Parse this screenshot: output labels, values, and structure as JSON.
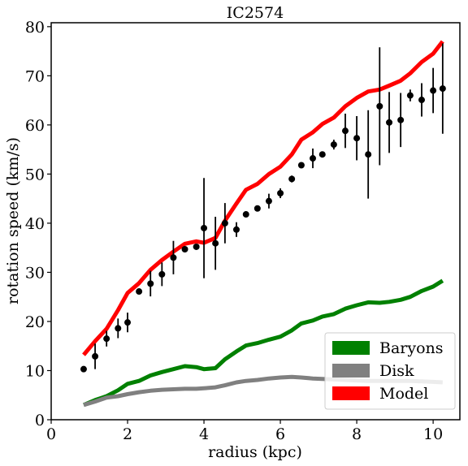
{
  "chart_data": {
    "type": "line",
    "title": "IC2574",
    "xlabel": "radius (kpc)",
    "ylabel": "rotation speed (km/s)",
    "xlim": [
      0,
      10.7
    ],
    "ylim": [
      0,
      80.8
    ],
    "xticks": [
      0,
      2,
      4,
      6,
      8,
      10
    ],
    "yticks": [
      0,
      10,
      20,
      30,
      40,
      50,
      60,
      70,
      80
    ],
    "grid": false,
    "legend_position": "bottom-right",
    "series": [
      {
        "name": "Baryons",
        "color": "#008000",
        "x": [
          0.85,
          1.15,
          1.45,
          1.75,
          2.0,
          2.3,
          2.6,
          2.9,
          3.2,
          3.5,
          3.8,
          4.0,
          4.3,
          4.55,
          4.85,
          5.1,
          5.4,
          5.7,
          6.0,
          6.3,
          6.55,
          6.85,
          7.1,
          7.4,
          7.7,
          8.0,
          8.3,
          8.6,
          8.85,
          9.15,
          9.4,
          9.7,
          10.0,
          10.25
        ],
        "y": [
          3.0,
          4.0,
          4.8,
          6.0,
          7.3,
          7.9,
          9.0,
          9.7,
          10.3,
          10.9,
          10.7,
          10.3,
          10.5,
          12.3,
          13.9,
          15.1,
          15.6,
          16.3,
          16.9,
          18.2,
          19.6,
          20.2,
          21.0,
          21.5,
          22.6,
          23.3,
          23.9,
          23.8,
          24.0,
          24.4,
          25.0,
          26.2,
          27.1,
          28.3
        ]
      },
      {
        "name": "Disk",
        "color": "#808080",
        "x": [
          0.85,
          1.15,
          1.45,
          1.75,
          2.0,
          2.3,
          2.6,
          2.9,
          3.2,
          3.5,
          3.8,
          4.0,
          4.3,
          4.55,
          4.85,
          5.1,
          5.4,
          5.7,
          6.0,
          6.3,
          6.55,
          6.85,
          7.1,
          7.4,
          7.7,
          8.0,
          8.3,
          8.6,
          8.85,
          9.15,
          9.4,
          9.7,
          10.0,
          10.25
        ],
        "y": [
          3.0,
          3.7,
          4.5,
          4.8,
          5.2,
          5.6,
          5.9,
          6.1,
          6.2,
          6.3,
          6.3,
          6.4,
          6.6,
          7.0,
          7.6,
          7.9,
          8.1,
          8.4,
          8.6,
          8.7,
          8.6,
          8.4,
          8.3,
          8.2,
          8.1,
          8.0,
          7.9,
          7.9,
          7.9,
          7.9,
          7.9,
          7.8,
          7.7,
          7.6
        ]
      },
      {
        "name": "Model",
        "color": "#ff0000",
        "x": [
          0.85,
          1.15,
          1.45,
          1.75,
          2.0,
          2.3,
          2.6,
          2.9,
          3.2,
          3.5,
          3.8,
          4.0,
          4.3,
          4.55,
          4.85,
          5.1,
          5.4,
          5.7,
          6.0,
          6.3,
          6.55,
          6.85,
          7.1,
          7.4,
          7.7,
          8.0,
          8.3,
          8.6,
          8.85,
          9.15,
          9.4,
          9.7,
          10.0,
          10.25
        ],
        "y": [
          13.2,
          16.0,
          18.5,
          22.3,
          25.8,
          27.8,
          30.5,
          32.5,
          34.2,
          35.8,
          36.3,
          36.0,
          37.0,
          40.5,
          44.0,
          46.8,
          48.0,
          50.0,
          51.5,
          54.0,
          57.0,
          58.5,
          60.2,
          61.5,
          63.8,
          65.5,
          66.8,
          67.2,
          68.0,
          69.0,
          70.5,
          72.8,
          74.5,
          77.0
        ]
      },
      {
        "name": "",
        "type": "scatter",
        "color": "#000000",
        "x": [
          0.85,
          1.15,
          1.45,
          1.75,
          2.0,
          2.3,
          2.6,
          2.9,
          3.2,
          3.5,
          3.8,
          4.0,
          4.3,
          4.55,
          4.85,
          5.1,
          5.4,
          5.7,
          6.0,
          6.3,
          6.55,
          6.85,
          7.1,
          7.4,
          7.7,
          8.0,
          8.3,
          8.6,
          8.85,
          9.15,
          9.4,
          9.7,
          10.0,
          10.25
        ],
        "y": [
          10.3,
          12.9,
          16.5,
          18.6,
          19.8,
          26.1,
          27.7,
          29.6,
          33.0,
          34.7,
          35.2,
          39.0,
          35.9,
          40.0,
          38.7,
          41.8,
          43.0,
          44.5,
          46.1,
          49.0,
          51.8,
          53.2,
          54.0,
          56.0,
          58.8,
          57.3,
          54.0,
          63.8,
          60.5,
          61.0,
          66.0,
          65.1,
          67.0,
          67.4
        ],
        "error": [
          0,
          2.6,
          1.6,
          2.0,
          2.0,
          0,
          2.6,
          2.4,
          3.4,
          0,
          0,
          10.2,
          5.4,
          4.1,
          1.5,
          0,
          0,
          1.5,
          1.0,
          0.7,
          0,
          2.0,
          0,
          1.0,
          3.5,
          4.5,
          9.0,
          12.0,
          6.2,
          5.5,
          1.2,
          3.4,
          4.6,
          9.2
        ]
      }
    ]
  }
}
